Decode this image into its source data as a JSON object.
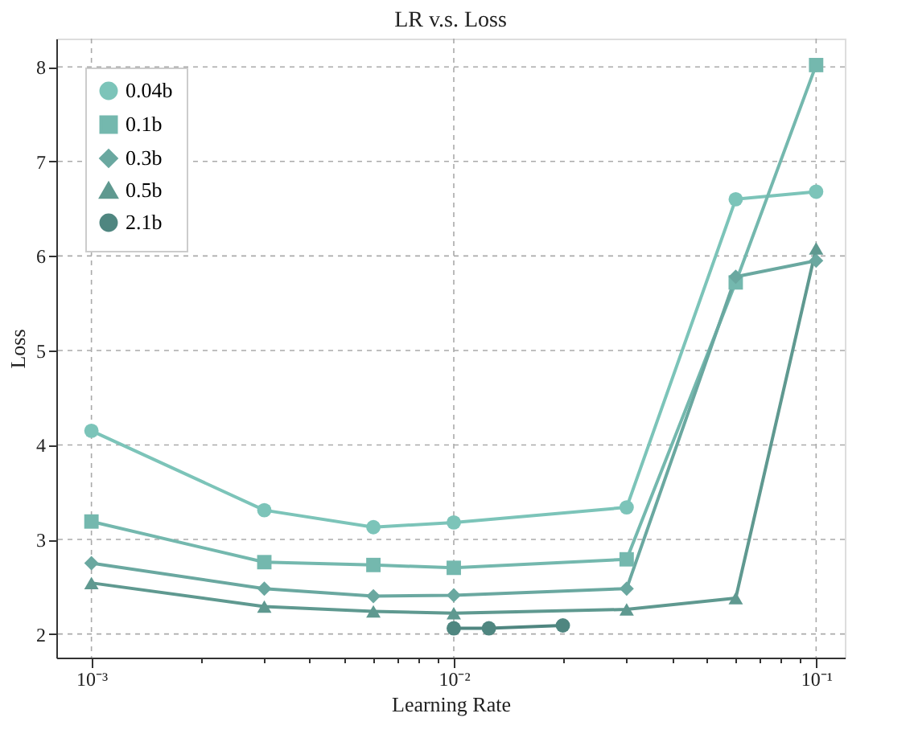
{
  "chart_data": {
    "type": "line",
    "title": "LR v.s. Loss",
    "xlabel": "Learning Rate",
    "ylabel": "Loss",
    "log": "x",
    "xlim": [
      0.0008,
      0.12
    ],
    "xticks": [
      {
        "value": 0.001,
        "label": "10⁻³"
      },
      {
        "value": 0.002,
        "label": null
      },
      {
        "value": 0.003,
        "label": null
      },
      {
        "value": 0.004,
        "label": null
      },
      {
        "value": 0.005,
        "label": null
      },
      {
        "value": 0.006,
        "label": null
      },
      {
        "value": 0.007,
        "label": null
      },
      {
        "value": 0.008,
        "label": null
      },
      {
        "value": 0.009,
        "label": null
      },
      {
        "value": 0.01,
        "label": "10⁻²"
      },
      {
        "value": 0.02,
        "label": null
      },
      {
        "value": 0.03,
        "label": null
      },
      {
        "value": 0.04,
        "label": null
      },
      {
        "value": 0.05,
        "label": null
      },
      {
        "value": 0.06,
        "label": null
      },
      {
        "value": 0.07,
        "label": null
      },
      {
        "value": 0.08,
        "label": null
      },
      {
        "value": 0.09,
        "label": null
      },
      {
        "value": 0.1,
        "label": "10⁻¹"
      }
    ],
    "ylim": [
      1.75,
      8.3
    ],
    "yticks": [
      2,
      3,
      4,
      5,
      6,
      7,
      8
    ],
    "grid": true,
    "legend": "top left",
    "line_style": "solid",
    "series": [
      {
        "name": "0.04b",
        "color": "#7cc4b9",
        "marker": "circle",
        "x": [
          0.001,
          0.003,
          0.006,
          0.01,
          0.03,
          0.06,
          0.1
        ],
        "values": [
          4.15,
          3.31,
          3.13,
          3.18,
          3.34,
          6.6,
          6.68
        ]
      },
      {
        "name": "0.1b",
        "color": "#74b8ae",
        "marker": "square",
        "x": [
          0.001,
          0.003,
          0.006,
          0.01,
          0.03,
          0.06,
          0.1
        ],
        "values": [
          3.19,
          2.76,
          2.73,
          2.7,
          2.79,
          5.72,
          8.02
        ]
      },
      {
        "name": "0.3b",
        "color": "#6aa8a0",
        "marker": "diamond",
        "x": [
          0.001,
          0.003,
          0.006,
          0.01,
          0.03,
          0.06,
          0.1
        ],
        "values": [
          2.75,
          2.48,
          2.4,
          2.41,
          2.48,
          5.78,
          5.95
        ]
      },
      {
        "name": "0.5b",
        "color": "#5f9990",
        "marker": "triangle",
        "x": [
          0.001,
          0.003,
          0.006,
          0.01,
          0.03,
          0.06,
          0.1
        ],
        "values": [
          2.54,
          2.29,
          2.24,
          2.22,
          2.26,
          2.38,
          6.08
        ]
      },
      {
        "name": "2.1b",
        "color": "#4f8680",
        "marker": "circle",
        "x": [
          0.01,
          0.0125,
          0.02
        ],
        "values": [
          2.06,
          2.06,
          2.09
        ]
      }
    ]
  }
}
